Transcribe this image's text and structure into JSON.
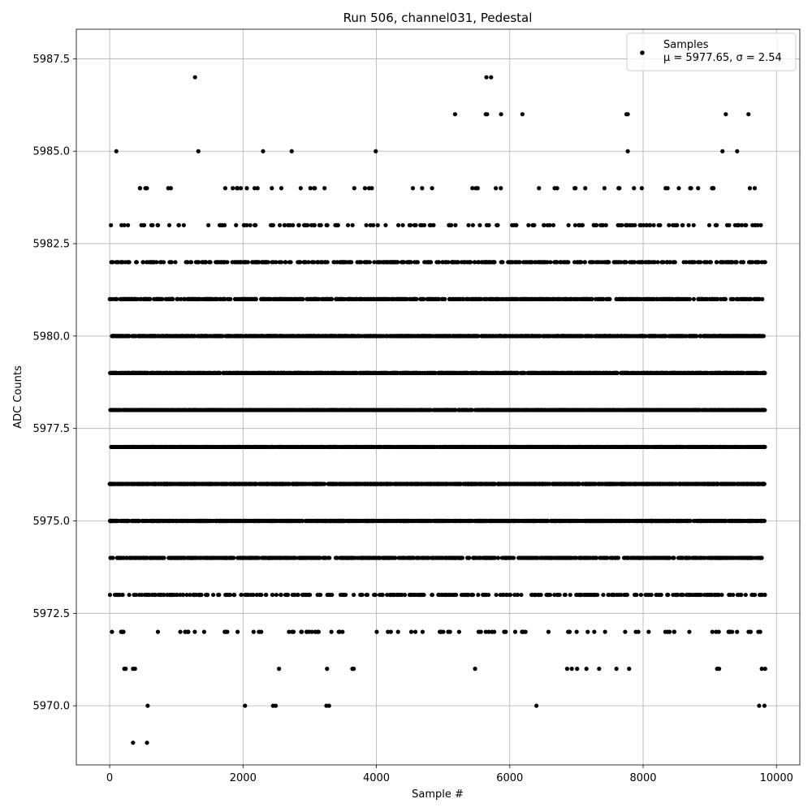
{
  "chart_data": {
    "type": "scatter",
    "title": "Run 506, channel031, Pedestal",
    "xlabel": "Sample #",
    "ylabel": "ADC Counts",
    "xlim": [
      -500,
      10350
    ],
    "ylim": [
      5968.4,
      5988.3
    ],
    "x_ticks": [
      0,
      2000,
      4000,
      6000,
      8000,
      10000
    ],
    "x_tick_labels": [
      "0",
      "2000",
      "4000",
      "6000",
      "8000",
      "10000"
    ],
    "y_ticks": [
      5970.0,
      5972.5,
      5975.0,
      5977.5,
      5980.0,
      5982.5,
      5985.0,
      5987.5
    ],
    "y_tick_labels": [
      "5970.0",
      "5972.5",
      "5975.0",
      "5977.5",
      "5980.0",
      "5982.5",
      "5985.0",
      "5987.5"
    ],
    "grid": true,
    "legend_position": "top-right",
    "marker_color": "#000000",
    "series": [
      {
        "name": "Samples",
        "label_line2": "μ = 5977.65, σ = 2.54",
        "mean": 5977.65,
        "sigma": 2.54,
        "n_samples": 9830,
        "x_range": [
          0,
          9829
        ],
        "value_distribution": [
          {
            "y": 5969,
            "approx_count": 2
          },
          {
            "y": 5970,
            "approx_count": 10
          },
          {
            "y": 5971,
            "approx_count": 20
          },
          {
            "y": 5972,
            "approx_count": 95
          },
          {
            "y": 5973,
            "approx_count": 360
          },
          {
            "y": 5974,
            "approx_count": 850
          },
          {
            "y": 5975,
            "approx_count": 1300
          },
          {
            "y": 5976,
            "approx_count": 1500
          },
          {
            "y": 5977,
            "approx_count": 1550
          },
          {
            "y": 5978,
            "approx_count": 1500
          },
          {
            "y": 5979,
            "approx_count": 1300
          },
          {
            "y": 5980,
            "approx_count": 1000
          },
          {
            "y": 5981,
            "approx_count": 700
          },
          {
            "y": 5982,
            "approx_count": 450
          },
          {
            "y": 5983,
            "approx_count": 160
          },
          {
            "y": 5984,
            "approx_count": 55
          },
          {
            "y": 5985,
            "approx_count": 8
          },
          {
            "y": 5986,
            "approx_count": 8
          },
          {
            "y": 5987,
            "approx_count": 3
          }
        ],
        "points": [
          [
            350,
            5969
          ],
          [
            560,
            5969
          ],
          [
            570,
            5970
          ],
          [
            2030,
            5970
          ],
          [
            2450,
            5970
          ],
          [
            2490,
            5970
          ],
          [
            3250,
            5970
          ],
          [
            3290,
            5970
          ],
          [
            6400,
            5970
          ],
          [
            9740,
            5970
          ],
          [
            9820,
            5970
          ],
          [
            220,
            5971
          ],
          [
            240,
            5971
          ],
          [
            350,
            5971
          ],
          [
            380,
            5971
          ],
          [
            2540,
            5971
          ],
          [
            3260,
            5971
          ],
          [
            3640,
            5971
          ],
          [
            3660,
            5971
          ],
          [
            5480,
            5971
          ],
          [
            6860,
            5971
          ],
          [
            6930,
            5971
          ],
          [
            7010,
            5971
          ],
          [
            7150,
            5971
          ],
          [
            7340,
            5971
          ],
          [
            7600,
            5971
          ],
          [
            7790,
            5971
          ],
          [
            9110,
            5971
          ],
          [
            9140,
            5971
          ],
          [
            9780,
            5971
          ],
          [
            9830,
            5971
          ],
          [
            1280,
            5987
          ],
          [
            5650,
            5987
          ],
          [
            5720,
            5987
          ],
          [
            5180,
            5986
          ],
          [
            5640,
            5986
          ],
          [
            5660,
            5986
          ],
          [
            5870,
            5986
          ],
          [
            6190,
            5986
          ],
          [
            7750,
            5986
          ],
          [
            7770,
            5986
          ],
          [
            9240,
            5986
          ],
          [
            9580,
            5986
          ],
          [
            100,
            5985
          ],
          [
            1330,
            5985
          ],
          [
            2300,
            5985
          ],
          [
            2730,
            5985
          ],
          [
            3990,
            5985
          ],
          [
            7770,
            5985
          ],
          [
            9190,
            5985
          ],
          [
            9410,
            5985
          ]
        ]
      }
    ]
  }
}
